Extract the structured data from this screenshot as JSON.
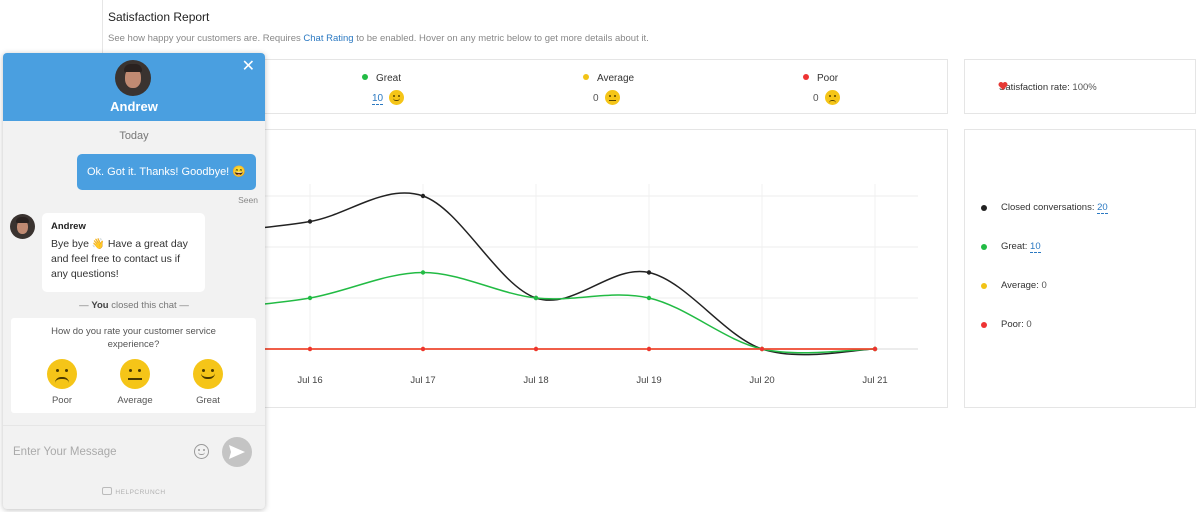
{
  "report": {
    "title": "Satisfaction Report",
    "subtitle_before": "See how happy your customers are. Requires ",
    "subtitle_link": "Chat Rating",
    "subtitle_after": " to be enabled. Hover on any metric below to get more details about it.",
    "stats": [
      {
        "label": "Great",
        "value": "10",
        "color": "#22bb44",
        "mood": "happy"
      },
      {
        "label": "Average",
        "value": "0",
        "color": "#f2c316",
        "mood": "neutral"
      },
      {
        "label": "Poor",
        "value": "0",
        "color": "#ee3333",
        "mood": "sad"
      }
    ],
    "satisfaction": {
      "label": "Satisfaction rate:",
      "value": "100%",
      "icon": "heart-icon",
      "color": "#e53935"
    },
    "legend": [
      {
        "label": "Closed conversations:",
        "value": "20",
        "color": "#222222"
      },
      {
        "label": "Great:",
        "value": "10",
        "color": "#22bb44"
      },
      {
        "label": "Average:",
        "value": "0",
        "color": "#f2c316"
      },
      {
        "label": "Poor:",
        "value": "0",
        "color": "#ee3333"
      }
    ]
  },
  "chart_data": {
    "type": "line",
    "categories": [
      "Jul 16",
      "Jul 17",
      "Jul 18",
      "Jul 19",
      "Jul 20",
      "Jul 21"
    ],
    "ylim": [
      0,
      3
    ],
    "grid": true,
    "series": [
      {
        "color": "#222222",
        "values": [
          2.5,
          3.0,
          1.0,
          1.5,
          0,
          0
        ]
      },
      {
        "color": "#22bb44",
        "values": [
          1.0,
          1.5,
          1.0,
          1.0,
          0,
          0
        ]
      },
      {
        "color": "#f2c316",
        "values": [
          0,
          0,
          0,
          0,
          0,
          0
        ]
      },
      {
        "color": "#ee3333",
        "values": [
          0,
          0,
          0,
          0,
          0,
          0
        ]
      }
    ]
  },
  "widget": {
    "agent_name": "Andrew",
    "close_icon": "close-icon",
    "day_label": "Today",
    "my_message": "Ok. Got it. Thanks! Goodbye! 😄",
    "seen_label": "Seen",
    "agent_message": "Bye bye 👋  Have a great day and feel free to contact us if any questions!",
    "closed_prefix": "— ",
    "closed_actor": "You",
    "closed_suffix": " closed this chat —",
    "rating_question": "How do you rate your customer service experience?",
    "rating_options": [
      {
        "label": "Poor",
        "mood": "sad"
      },
      {
        "label": "Average",
        "mood": "neutral"
      },
      {
        "label": "Great",
        "mood": "happy"
      }
    ],
    "input_placeholder": "Enter Your Message",
    "brand": "HELPCRUNCH"
  }
}
